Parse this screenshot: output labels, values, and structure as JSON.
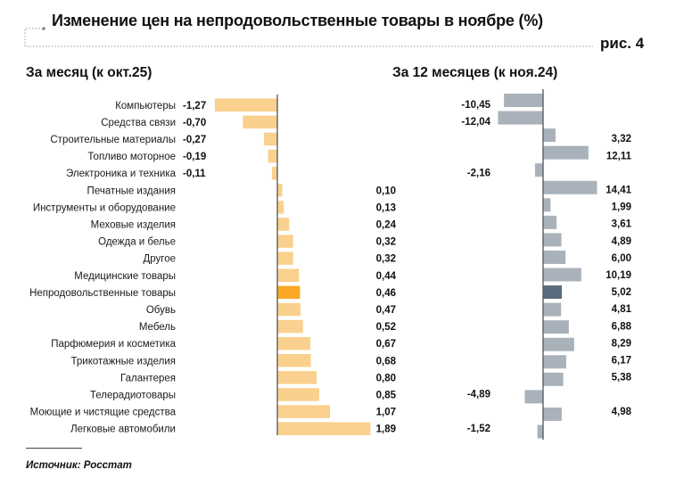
{
  "header": {
    "title": "Изменение цен на непродовольственные товары в ноябре (%)",
    "figure_label": "рис. 4"
  },
  "footer": {
    "source": "Источник: Росстат"
  },
  "colors": {
    "monthly_bar": "#FAD08E",
    "monthly_highlight": "#F9A825",
    "yearly_bar": "#A9B2BA",
    "yearly_highlight": "#5A6B7D",
    "axis": "#555555",
    "bracket": "#9a9a9a"
  },
  "chart_data": [
    {
      "type": "bar",
      "orientation": "horizontal",
      "title": "За месяц (к окт.25)",
      "categories": [
        "Компьютеры",
        "Средства связи",
        "Строительные материалы",
        "Топливо моторное",
        "Электроника и техника",
        "Печатные издания",
        "Инструменты и оборудование",
        "Меховые изделия",
        "Одежда и белье",
        "Другое",
        "Медицинские товары",
        "Непродовольственные товары",
        "Обувь",
        "Мебель",
        "Парфюмерия и косметика",
        "Трикотажные изделия",
        "Галантерея",
        "Телерадиотовары",
        "Моющие и чистящие средства",
        "Легковые автомобили"
      ],
      "values": [
        -1.27,
        -0.7,
        -0.27,
        -0.19,
        -0.11,
        0.1,
        0.13,
        0.24,
        0.32,
        0.32,
        0.44,
        0.46,
        0.47,
        0.52,
        0.67,
        0.68,
        0.8,
        0.85,
        1.07,
        1.89
      ],
      "labels": [
        "-1,27",
        "-0,70",
        "-0,27",
        "-0,19",
        "-0,11",
        "0,10",
        "0,13",
        "0,24",
        "0,32",
        "0,32",
        "0,44",
        "0,46",
        "0,47",
        "0,52",
        "0,67",
        "0,68",
        "0,80",
        "0,85",
        "1,07",
        "1,89"
      ],
      "highlight": "Непродовольственные товары",
      "xlim": [
        -1.27,
        1.89
      ],
      "grid": false
    },
    {
      "type": "bar",
      "orientation": "horizontal",
      "title": "За 12 месяцев (к ноя.24)",
      "categories": [
        "Компьютеры",
        "Средства связи",
        "Строительные материалы",
        "Топливо моторное",
        "Электроника и техника",
        "Печатные издания",
        "Инструменты и оборудование",
        "Меховые изделия",
        "Одежда и белье",
        "Другое",
        "Медицинские товары",
        "Непродовольственные товары",
        "Обувь",
        "Мебель",
        "Парфюмерия и косметика",
        "Трикотажные изделия",
        "Галантерея",
        "Телерадиотовары",
        "Моющие и чистящие средства",
        "Легковые автомобили"
      ],
      "values": [
        -10.45,
        -12.04,
        3.32,
        12.11,
        -2.16,
        14.41,
        1.99,
        3.61,
        4.89,
        6.0,
        10.19,
        5.02,
        4.81,
        6.88,
        8.29,
        6.17,
        5.38,
        -4.89,
        4.98,
        -1.52
      ],
      "labels": [
        "-10,45",
        "-12,04",
        "3,32",
        "12,11",
        "-2,16",
        "14,41",
        "1,99",
        "3,61",
        "4,89",
        "6,00",
        "10,19",
        "5,02",
        "4,81",
        "6,88",
        "8,29",
        "6,17",
        "5,38",
        "-4,89",
        "4,98",
        "-1,52"
      ],
      "highlight": "Непродовольственные товары",
      "xlim": [
        -12.04,
        14.41
      ],
      "grid": false
    }
  ]
}
